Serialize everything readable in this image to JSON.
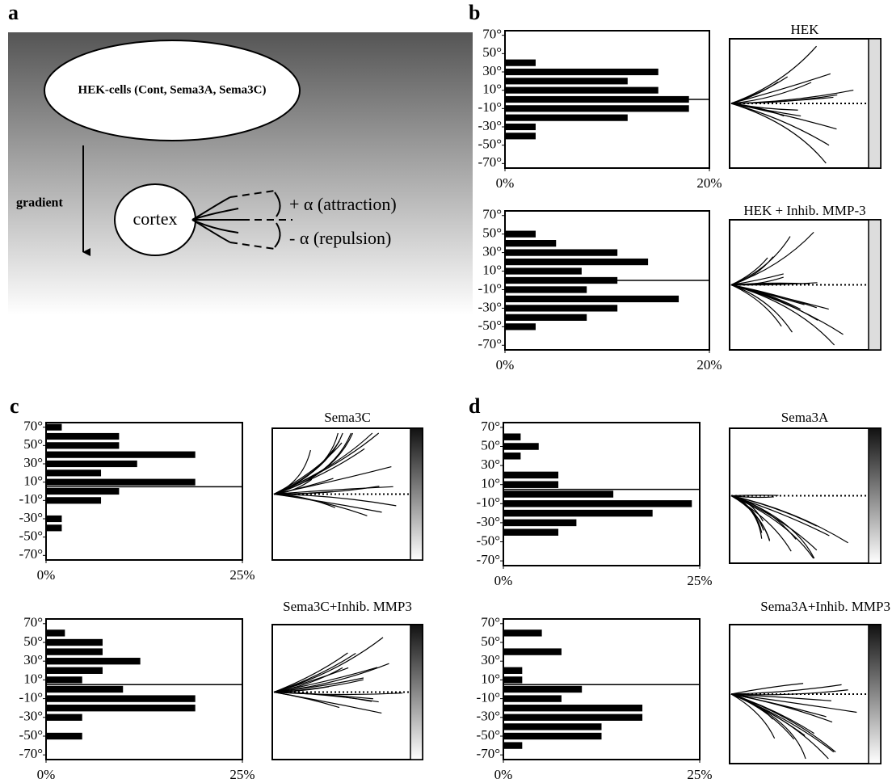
{
  "panel_labels": [
    "a",
    "b",
    "c",
    "d"
  ],
  "diagram": {
    "source": "HEK-cells (Cont, Sema3A, Sema3C)",
    "gradient": "gradient",
    "target": "cortex",
    "attraction": "+ α (attraction)",
    "repulsion": "- α (repulsion)"
  },
  "trace_titles": [
    "HEK",
    "HEK + Inhib. MMP-3",
    "Sema3C",
    "Sema3C+Inhib. MMP3",
    "Sema3A",
    "Sema3A+Inhib. MMP3"
  ],
  "chart_data": [
    {
      "type": "bar",
      "orientation": "horizontal",
      "y": [
        70,
        60,
        50,
        40,
        30,
        20,
        10,
        0,
        -10,
        -20,
        -30,
        -40,
        -50,
        -60,
        -70
      ],
      "values": [
        0,
        0,
        0,
        3,
        15,
        12,
        15,
        18,
        18,
        12,
        3,
        3,
        0,
        0,
        0
      ],
      "color": "#000000",
      "ylim": [
        -75,
        75
      ],
      "yticks": [
        {
          "value": 70,
          "label": "70°"
        },
        {
          "value": 50,
          "label": "50°"
        },
        {
          "value": 30,
          "label": "30°"
        },
        {
          "value": 10,
          "label": "10°"
        },
        {
          "value": -10,
          "label": "-10°"
        },
        {
          "value": -30,
          "label": "-30°"
        },
        {
          "value": -50,
          "label": "-50°"
        },
        {
          "value": -70,
          "label": "-70°"
        }
      ],
      "xlim": [
        0,
        20
      ],
      "xticks": [
        {
          "value": 0,
          "label": "0%"
        },
        {
          "value": 20,
          "label": "20%"
        }
      ],
      "hline": 0
    },
    {
      "type": "bar",
      "orientation": "horizontal",
      "y": [
        70,
        60,
        50,
        40,
        30,
        20,
        10,
        0,
        -10,
        -20,
        -30,
        -40,
        -50,
        -60,
        -70
      ],
      "values": [
        0,
        0,
        3,
        5,
        11,
        14,
        7.5,
        11,
        8,
        17,
        11,
        8,
        3,
        0,
        0
      ],
      "color": "#000000",
      "ylim": [
        -75,
        75
      ],
      "yticks": [
        {
          "value": 70,
          "label": "70°"
        },
        {
          "value": 50,
          "label": "50°"
        },
        {
          "value": 30,
          "label": "30°"
        },
        {
          "value": 10,
          "label": "10°"
        },
        {
          "value": -10,
          "label": "-10°"
        },
        {
          "value": -30,
          "label": "-30°"
        },
        {
          "value": -50,
          "label": "-50°"
        },
        {
          "value": -70,
          "label": "-70°"
        }
      ],
      "xlim": [
        0,
        20
      ],
      "xticks": [
        {
          "value": 0,
          "label": "0%"
        },
        {
          "value": 20,
          "label": "20%"
        }
      ],
      "hline": 0
    },
    {
      "type": "bar",
      "orientation": "horizontal",
      "y": [
        70,
        60,
        50,
        40,
        30,
        20,
        10,
        0,
        -10,
        -20,
        -30,
        -40,
        -50,
        -60,
        -70
      ],
      "values": [
        2,
        9.3,
        9.3,
        19,
        11.6,
        7,
        19,
        9.3,
        7,
        0,
        2,
        2,
        0,
        0,
        0
      ],
      "color": "#000000",
      "ylim": [
        -75,
        75
      ],
      "yticks": [
        {
          "value": 70,
          "label": "70°"
        },
        {
          "value": 50,
          "label": "50°"
        },
        {
          "value": 30,
          "label": "30°"
        },
        {
          "value": 10,
          "label": "10°"
        },
        {
          "value": -10,
          "label": "-10°"
        },
        {
          "value": -30,
          "label": "-30°"
        },
        {
          "value": -50,
          "label": "-50°"
        },
        {
          "value": -70,
          "label": "-70°"
        }
      ],
      "xlim": [
        0,
        25
      ],
      "xticks": [
        {
          "value": 0,
          "label": "0%"
        },
        {
          "value": 25,
          "label": "25%"
        }
      ],
      "hline": 5
    },
    {
      "type": "bar",
      "orientation": "horizontal",
      "y": [
        70,
        60,
        50,
        40,
        30,
        20,
        10,
        0,
        -10,
        -20,
        -30,
        -40,
        -50,
        -60,
        -70
      ],
      "values": [
        0,
        2.4,
        7.2,
        7.2,
        12,
        7.2,
        4.6,
        9.8,
        19,
        19,
        4.6,
        0,
        4.6,
        0,
        0
      ],
      "color": "#000000",
      "ylim": [
        -75,
        75
      ],
      "yticks": [
        {
          "value": 70,
          "label": "70°"
        },
        {
          "value": 50,
          "label": "50°"
        },
        {
          "value": 30,
          "label": "30°"
        },
        {
          "value": 10,
          "label": "10°"
        },
        {
          "value": -10,
          "label": "-10°"
        },
        {
          "value": -30,
          "label": "-30°"
        },
        {
          "value": -50,
          "label": "-50°"
        },
        {
          "value": -70,
          "label": "-70°"
        }
      ],
      "xlim": [
        0,
        25
      ],
      "xticks": [
        {
          "value": 0,
          "label": "0%"
        },
        {
          "value": 25,
          "label": "25%"
        }
      ],
      "hline": 5
    },
    {
      "type": "bar",
      "orientation": "horizontal",
      "y": [
        70,
        60,
        50,
        40,
        30,
        20,
        10,
        0,
        -10,
        -20,
        -30,
        -40,
        -50,
        -60,
        -70
      ],
      "values": [
        0,
        2.2,
        4.5,
        2.2,
        0,
        7,
        7,
        14,
        24,
        19,
        9.3,
        7,
        0,
        0,
        0
      ],
      "color": "#000000",
      "ylim": [
        -75,
        75
      ],
      "yticks": [
        {
          "value": 70,
          "label": "70°"
        },
        {
          "value": 50,
          "label": "50°"
        },
        {
          "value": 30,
          "label": "30°"
        },
        {
          "value": 10,
          "label": "10°"
        },
        {
          "value": -10,
          "label": "-10°"
        },
        {
          "value": -30,
          "label": "-30°"
        },
        {
          "value": -50,
          "label": "-50°"
        },
        {
          "value": -70,
          "label": "-70°"
        }
      ],
      "xlim": [
        0,
        25
      ],
      "xticks": [
        {
          "value": 0,
          "label": "0%"
        },
        {
          "value": 25,
          "label": "25%"
        }
      ],
      "hline": 5
    },
    {
      "type": "bar",
      "orientation": "horizontal",
      "y": [
        70,
        60,
        50,
        40,
        30,
        20,
        10,
        0,
        -10,
        -20,
        -30,
        -40,
        -50,
        -60,
        -70
      ],
      "values": [
        0,
        4.9,
        0,
        7.4,
        0,
        2.4,
        2.4,
        10,
        7.4,
        17.7,
        17.7,
        12.5,
        12.5,
        2.4,
        0
      ],
      "color": "#000000",
      "ylim": [
        -75,
        75
      ],
      "yticks": [
        {
          "value": 70,
          "label": "70°"
        },
        {
          "value": 50,
          "label": "50°"
        },
        {
          "value": 30,
          "label": "30°"
        },
        {
          "value": 10,
          "label": "10°"
        },
        {
          "value": -10,
          "label": "-10°"
        },
        {
          "value": -30,
          "label": "-30°"
        },
        {
          "value": -50,
          "label": "-50°"
        },
        {
          "value": -70,
          "label": "-70°"
        }
      ],
      "xlim": [
        0,
        25
      ],
      "xticks": [
        {
          "value": 0,
          "label": "0%"
        },
        {
          "value": 25,
          "label": "25%"
        }
      ],
      "hline": 5
    }
  ]
}
